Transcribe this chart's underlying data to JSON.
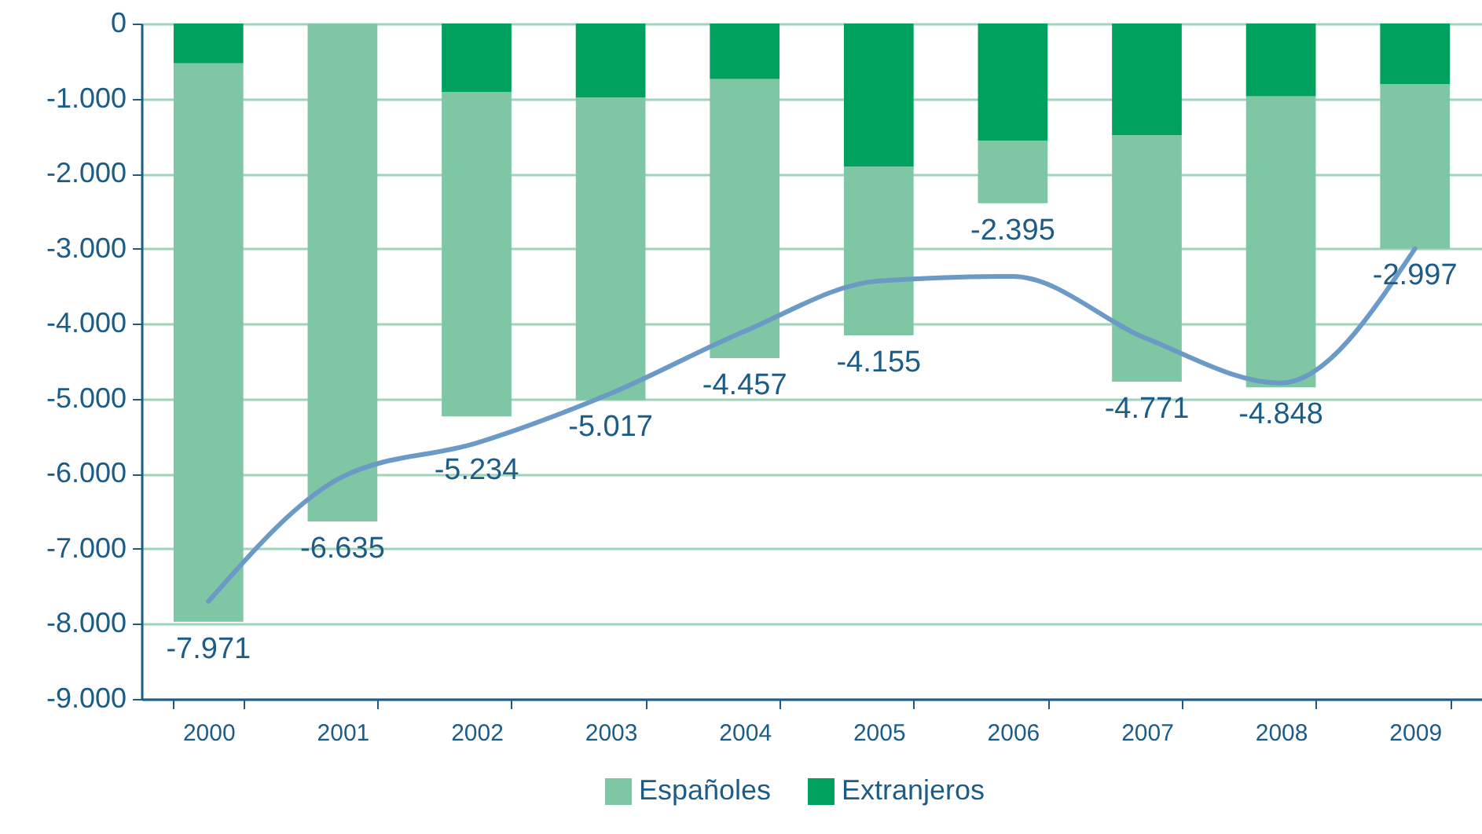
{
  "chart_data": {
    "type": "bar",
    "stacked": true,
    "categories": [
      "2000",
      "2001",
      "2002",
      "2003",
      "2004",
      "2005",
      "2006",
      "2007",
      "2008",
      "2009"
    ],
    "series": [
      {
        "name": "Extranjeros",
        "color": "#00a05e",
        "values": [
          -530,
          null,
          -910,
          -990,
          -740,
          -1910,
          -1560,
          -1490,
          -970,
          -810
        ]
      },
      {
        "name": "Españoles",
        "color": "#7fc6a4",
        "values": [
          -7441,
          -6635,
          -4324,
          -4027,
          -3717,
          -2245,
          -835,
          -3281,
          -3878,
          -2187
        ]
      },
      {
        "type": "line",
        "color": "#6b9ac6",
        "values": [
          -7700,
          -6040,
          -5590,
          -4930,
          -4100,
          -3430,
          -3370,
          -4200,
          -4790,
          -3000
        ]
      }
    ],
    "totals": [
      "-7.971",
      "-6.635",
      "-5.234",
      "-5.017",
      "-4.457",
      "-4.155",
      "-2.395",
      "-4.771",
      "-4.848",
      "-2.997"
    ],
    "ylim": [
      -9000,
      0
    ],
    "yticks": [
      {
        "value": -9000,
        "label": "-9.000"
      },
      {
        "value": -8000,
        "label": "-8.000"
      },
      {
        "value": -7000,
        "label": "-7.000"
      },
      {
        "value": -6000,
        "label": "-6.000"
      },
      {
        "value": -5000,
        "label": "-5.000"
      },
      {
        "value": -4000,
        "label": "-4.000"
      },
      {
        "value": -3000,
        "label": "-3.000"
      },
      {
        "value": -2000,
        "label": "-2.000"
      },
      {
        "value": -1000,
        "label": "-1.000"
      },
      0
    ],
    "grid": "y",
    "legend": "bottom"
  }
}
